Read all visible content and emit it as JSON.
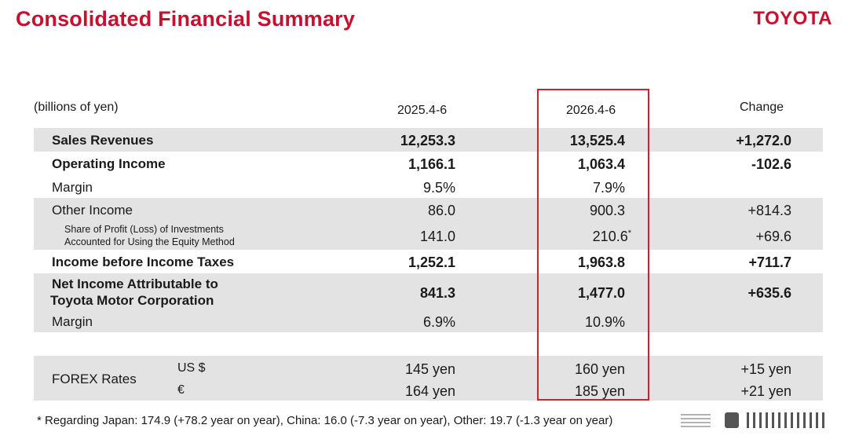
{
  "title": "Consolidated Financial Summary",
  "brand": "TOYOTA",
  "table": {
    "units": "(billions of yen)",
    "col1": "2025.4-6",
    "col2": "2026.4-6",
    "col3": "Change",
    "rows": {
      "sales": {
        "label": "Sales Revenues",
        "v1": "12,253.3",
        "v2": "13,525.4",
        "v3": "+1,272.0"
      },
      "opinc": {
        "label": "Operating Income",
        "v1": "1,166.1",
        "v2": "1,063.4",
        "v3": "-102.6"
      },
      "margin1": {
        "label": "Margin",
        "v1": "9.5%",
        "v2": "7.9%"
      },
      "other": {
        "label": "Other Income",
        "v1": "86.0",
        "v2": "900.3",
        "v3": "+814.3"
      },
      "equity": {
        "label1": "Share of Profit (Loss) of Investments",
        "label2": "Accounted for Using the Equity Method",
        "v1": "141.0",
        "v2": "210.6",
        "v2_mark": "*",
        "v3": "+69.6"
      },
      "pretax": {
        "label": "Income before Income Taxes",
        "v1": "1,252.1",
        "v2": "1,963.8",
        "v3": "+711.7"
      },
      "net": {
        "label1": "Net Income Attributable to",
        "label2": "Toyota Motor Corporation",
        "v1": "841.3",
        "v2": "1,477.0",
        "v3": "+635.6"
      },
      "margin2": {
        "label": "Margin",
        "v1": "6.9%",
        "v2": "10.9%"
      },
      "forex": {
        "label": "FOREX Rates",
        "usd": {
          "cur": "US $",
          "v1": "145 yen",
          "v2": "160 yen",
          "v3": "+15 yen"
        },
        "eur": {
          "cur": "€",
          "v1": "164 yen",
          "v2": "185 yen",
          "v3": "+21 yen"
        }
      }
    }
  },
  "footnote": "* Regarding Japan: 174.9 (+78.2 year on year), China: 16.0  (-7.3 year on year), Other: 19.7 (-1.3 year on year)",
  "colors": {
    "accent": "#c8102e",
    "band": "#e3e3e3",
    "highlight": "#d0202a"
  }
}
